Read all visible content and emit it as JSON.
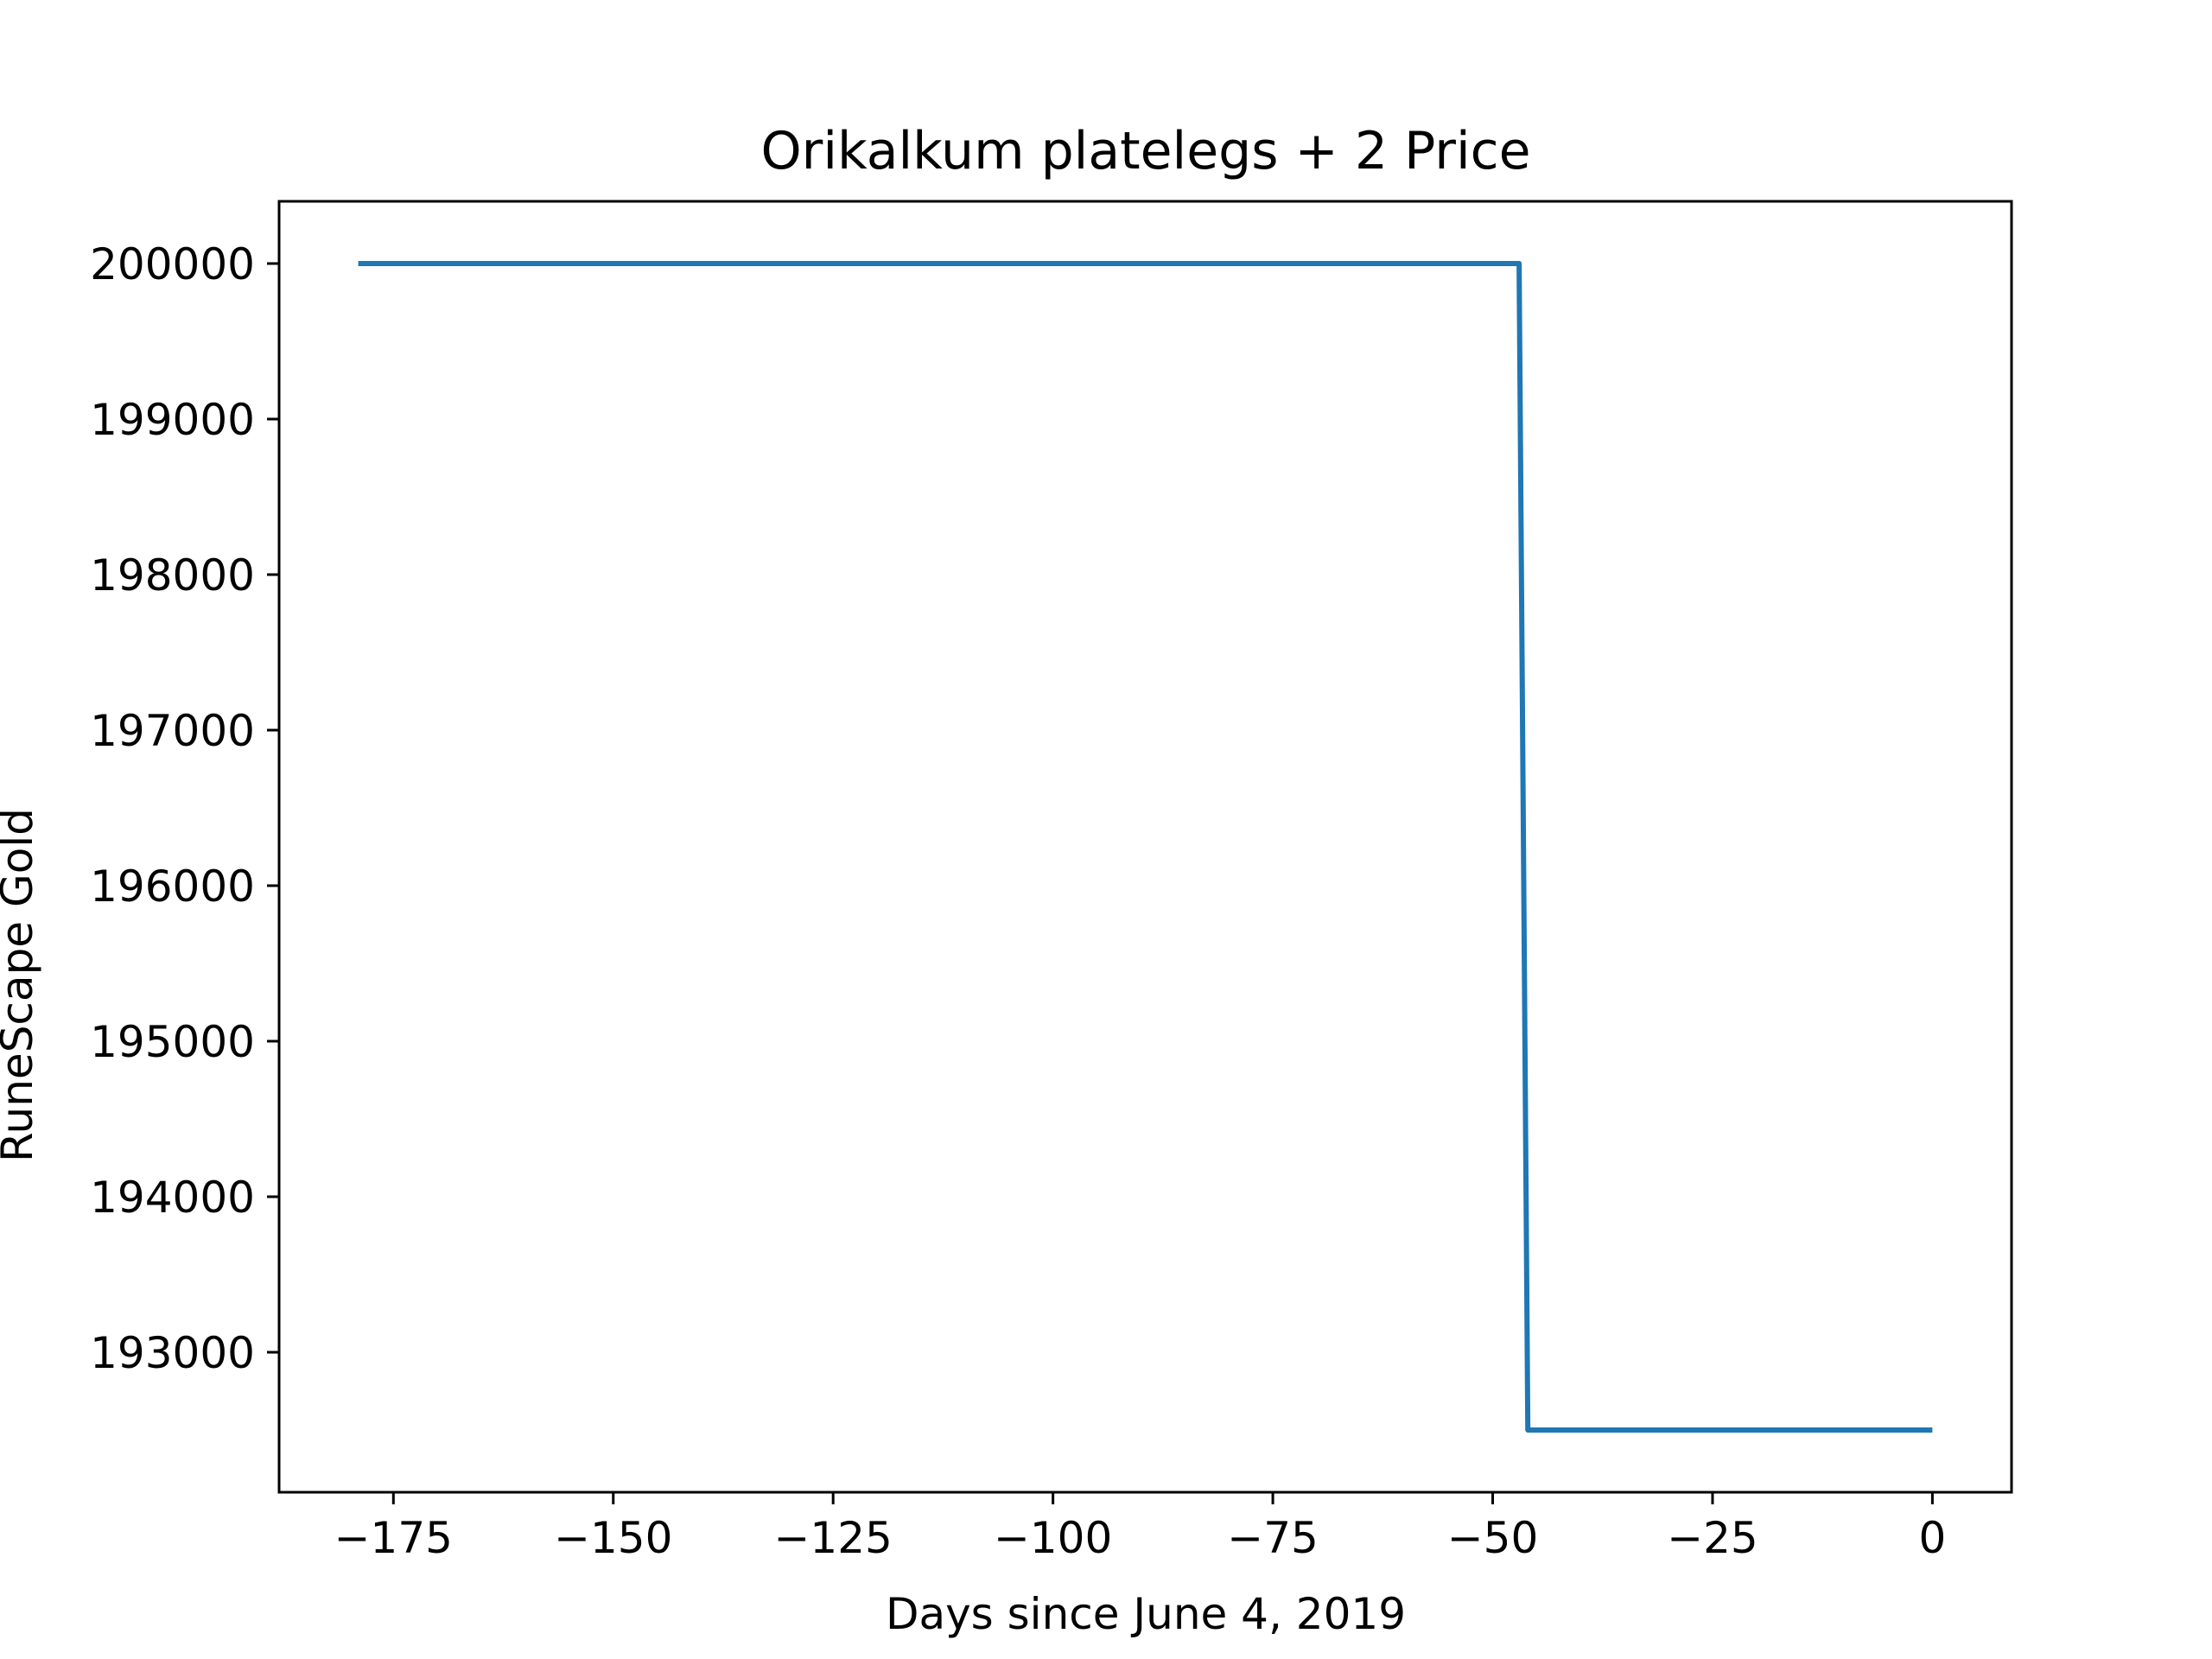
{
  "chart_data": {
    "type": "line",
    "title": "Orikalkum platelegs + 2 Price",
    "xlabel": "Days since June 4, 2019",
    "ylabel": "RuneScape Gold",
    "xlim": [
      -188,
      9
    ],
    "ylim": [
      192100,
      200400
    ],
    "xticks": [
      -175,
      -150,
      -125,
      -100,
      -75,
      -50,
      -25,
      0
    ],
    "xtick_labels": [
      "−175",
      "−150",
      "−125",
      "−100",
      "−75",
      "−50",
      "−25",
      "0"
    ],
    "yticks": [
      193000,
      194000,
      195000,
      196000,
      197000,
      198000,
      199000,
      200000
    ],
    "ytick_labels": [
      "193000",
      "194000",
      "195000",
      "196000",
      "197000",
      "198000",
      "199000",
      "200000"
    ],
    "grid": false,
    "series": [
      {
        "color": "#1f77b4",
        "x": [
          -179,
          -47,
          -46,
          0
        ],
        "y": [
          200000,
          200000,
          192500,
          192500
        ]
      }
    ]
  }
}
